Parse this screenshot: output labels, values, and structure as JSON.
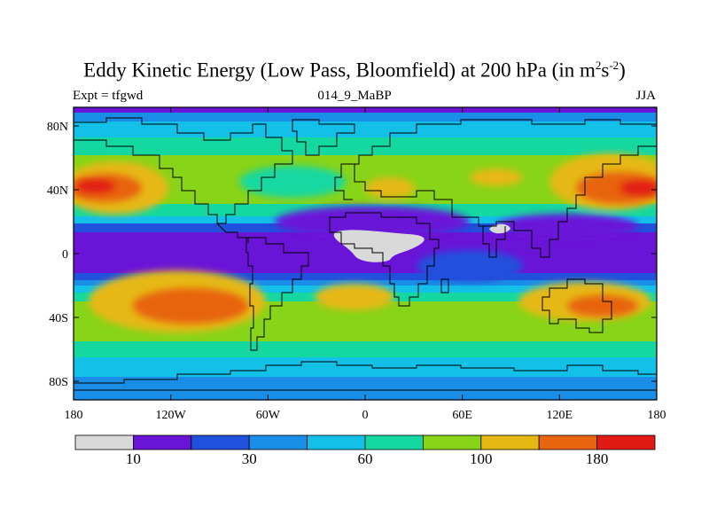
{
  "title": {
    "main": "Eddy Kinetic Energy (Low Pass, Bloomfield) at 200 hPa (in m",
    "sup1": "2",
    "mid": "s",
    "sup2": "-2",
    "tail": ")"
  },
  "subtitle_left": "Expt = tfgwd",
  "subtitle_center": "014_9_MaBP",
  "subtitle_right": "JJA",
  "axes": {
    "y_ticks": [
      "80N",
      "40N",
      "0",
      "40S",
      "80S"
    ],
    "x_ticks": [
      "180",
      "120W",
      "60W",
      "0",
      "60E",
      "120E",
      "180"
    ]
  },
  "colorbar": {
    "colors": [
      "#d9d9d9",
      "#6a14d8",
      "#2050dc",
      "#1a8ee6",
      "#12c0e8",
      "#14d8a0",
      "#88d418",
      "#e6b814",
      "#e8640e",
      "#e21a14"
    ],
    "labels": [
      "10",
      "30",
      "60",
      "100",
      "180"
    ]
  },
  "colors": {
    "gray": "#d9d9d9",
    "violet": "#6a14d8",
    "blue": "#2050dc",
    "midblue": "#1a8ee6",
    "cyan": "#12c0e8",
    "teal": "#14d8a0",
    "green": "#88d418",
    "yellow": "#e6b814",
    "orange": "#e8640e",
    "red": "#e21a14"
  }
}
